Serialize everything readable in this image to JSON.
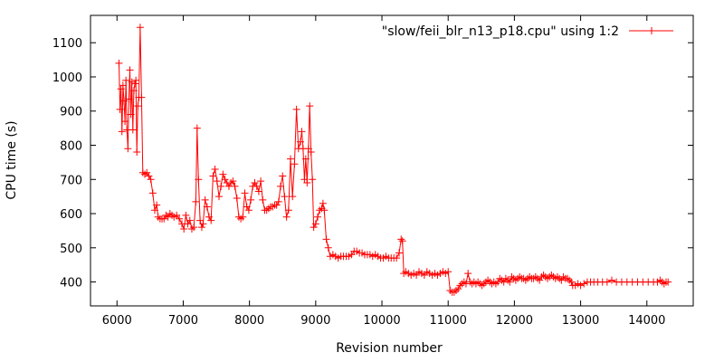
{
  "chart_data": {
    "type": "line",
    "title": "",
    "xlabel": "Revision number",
    "ylabel": "CPU time (s)",
    "xlim": [
      5600,
      14700
    ],
    "ylim": [
      330,
      1180
    ],
    "x_ticks": [
      6000,
      7000,
      8000,
      9000,
      10000,
      11000,
      12000,
      13000,
      14000
    ],
    "y_ticks": [
      400,
      500,
      600,
      700,
      800,
      900,
      1000,
      1100
    ],
    "grid": false,
    "legend_position": "top-right",
    "series_color": "#ff0000",
    "series": [
      {
        "name": "\"slow/feii_blr_n13_p18.cpu\" using 1:2",
        "marker": "plus",
        "points": [
          [
            6030,
            1040
          ],
          [
            6045,
            905
          ],
          [
            6060,
            965
          ],
          [
            6075,
            840
          ],
          [
            6090,
            975
          ],
          [
            6105,
            930
          ],
          [
            6120,
            870
          ],
          [
            6135,
            990
          ],
          [
            6150,
            845
          ],
          [
            6165,
            790
          ],
          [
            6180,
            935
          ],
          [
            6195,
            1020
          ],
          [
            6210,
            890
          ],
          [
            6225,
            985
          ],
          [
            6240,
            845
          ],
          [
            6255,
            960
          ],
          [
            6270,
            980
          ],
          [
            6285,
            990
          ],
          [
            6300,
            780
          ],
          [
            6315,
            915
          ],
          [
            6330,
            940
          ],
          [
            6350,
            1145
          ],
          [
            6370,
            940
          ],
          [
            6390,
            720
          ],
          [
            6420,
            715
          ],
          [
            6450,
            720
          ],
          [
            6480,
            710
          ],
          [
            6510,
            700
          ],
          [
            6540,
            660
          ],
          [
            6570,
            610
          ],
          [
            6600,
            625
          ],
          [
            6620,
            590
          ],
          [
            6650,
            585
          ],
          [
            6680,
            585
          ],
          [
            6710,
            585
          ],
          [
            6740,
            595
          ],
          [
            6770,
            590
          ],
          [
            6800,
            600
          ],
          [
            6830,
            595
          ],
          [
            6860,
            590
          ],
          [
            6900,
            595
          ],
          [
            6940,
            585
          ],
          [
            6980,
            570
          ],
          [
            7010,
            555
          ],
          [
            7040,
            595
          ],
          [
            7070,
            570
          ],
          [
            7100,
            580
          ],
          [
            7130,
            555
          ],
          [
            7160,
            560
          ],
          [
            7190,
            635
          ],
          [
            7210,
            850
          ],
          [
            7230,
            700
          ],
          [
            7255,
            580
          ],
          [
            7280,
            560
          ],
          [
            7300,
            570
          ],
          [
            7330,
            640
          ],
          [
            7360,
            620
          ],
          [
            7390,
            590
          ],
          [
            7420,
            580
          ],
          [
            7450,
            710
          ],
          [
            7480,
            730
          ],
          [
            7510,
            695
          ],
          [
            7540,
            650
          ],
          [
            7570,
            680
          ],
          [
            7600,
            715
          ],
          [
            7630,
            700
          ],
          [
            7660,
            690
          ],
          [
            7690,
            680
          ],
          [
            7720,
            690
          ],
          [
            7750,
            695
          ],
          [
            7780,
            680
          ],
          [
            7810,
            645
          ],
          [
            7840,
            590
          ],
          [
            7870,
            585
          ],
          [
            7900,
            590
          ],
          [
            7930,
            660
          ],
          [
            7960,
            620
          ],
          [
            7990,
            610
          ],
          [
            8020,
            640
          ],
          [
            8050,
            680
          ],
          [
            8080,
            690
          ],
          [
            8110,
            680
          ],
          [
            8140,
            665
          ],
          [
            8170,
            695
          ],
          [
            8200,
            640
          ],
          [
            8230,
            610
          ],
          [
            8260,
            610
          ],
          [
            8290,
            615
          ],
          [
            8320,
            620
          ],
          [
            8350,
            620
          ],
          [
            8380,
            625
          ],
          [
            8410,
            625
          ],
          [
            8440,
            635
          ],
          [
            8470,
            680
          ],
          [
            8500,
            710
          ],
          [
            8530,
            650
          ],
          [
            8560,
            590
          ],
          [
            8590,
            610
          ],
          [
            8620,
            760
          ],
          [
            8650,
            650
          ],
          [
            8680,
            745
          ],
          [
            8710,
            905
          ],
          [
            8740,
            790
          ],
          [
            8770,
            810
          ],
          [
            8790,
            840
          ],
          [
            8810,
            790
          ],
          [
            8830,
            700
          ],
          [
            8850,
            760
          ],
          [
            8870,
            690
          ],
          [
            8890,
            790
          ],
          [
            8910,
            915
          ],
          [
            8930,
            780
          ],
          [
            8950,
            700
          ],
          [
            8970,
            560
          ],
          [
            9000,
            570
          ],
          [
            9030,
            590
          ],
          [
            9060,
            610
          ],
          [
            9090,
            615
          ],
          [
            9110,
            630
          ],
          [
            9130,
            610
          ],
          [
            9160,
            525
          ],
          [
            9190,
            500
          ],
          [
            9220,
            475
          ],
          [
            9260,
            480
          ],
          [
            9300,
            475
          ],
          [
            9340,
            470
          ],
          [
            9380,
            475
          ],
          [
            9420,
            475
          ],
          [
            9460,
            475
          ],
          [
            9500,
            475
          ],
          [
            9540,
            480
          ],
          [
            9580,
            490
          ],
          [
            9620,
            490
          ],
          [
            9660,
            485
          ],
          [
            9700,
            485
          ],
          [
            9740,
            480
          ],
          [
            9780,
            480
          ],
          [
            9820,
            480
          ],
          [
            9860,
            475
          ],
          [
            9900,
            480
          ],
          [
            9940,
            475
          ],
          [
            9980,
            470
          ],
          [
            10020,
            470
          ],
          [
            10060,
            475
          ],
          [
            10100,
            470
          ],
          [
            10140,
            470
          ],
          [
            10180,
            470
          ],
          [
            10220,
            470
          ],
          [
            10260,
            485
          ],
          [
            10290,
            525
          ],
          [
            10310,
            520
          ],
          [
            10330,
            425
          ],
          [
            10360,
            430
          ],
          [
            10400,
            425
          ],
          [
            10440,
            420
          ],
          [
            10480,
            425
          ],
          [
            10520,
            420
          ],
          [
            10560,
            430
          ],
          [
            10600,
            425
          ],
          [
            10640,
            420
          ],
          [
            10680,
            430
          ],
          [
            10720,
            425
          ],
          [
            10760,
            420
          ],
          [
            10800,
            425
          ],
          [
            10840,
            420
          ],
          [
            10880,
            425
          ],
          [
            10920,
            430
          ],
          [
            10960,
            425
          ],
          [
            11000,
            430
          ],
          [
            11030,
            375
          ],
          [
            11060,
            370
          ],
          [
            11090,
            370
          ],
          [
            11120,
            375
          ],
          [
            11150,
            380
          ],
          [
            11180,
            390
          ],
          [
            11210,
            395
          ],
          [
            11240,
            400
          ],
          [
            11270,
            395
          ],
          [
            11300,
            425
          ],
          [
            11330,
            400
          ],
          [
            11360,
            395
          ],
          [
            11390,
            400
          ],
          [
            11420,
            395
          ],
          [
            11450,
            400
          ],
          [
            11480,
            395
          ],
          [
            11510,
            390
          ],
          [
            11540,
            395
          ],
          [
            11570,
            400
          ],
          [
            11600,
            405
          ],
          [
            11630,
            400
          ],
          [
            11660,
            395
          ],
          [
            11690,
            400
          ],
          [
            11720,
            395
          ],
          [
            11750,
            400
          ],
          [
            11780,
            410
          ],
          [
            11810,
            405
          ],
          [
            11840,
            400
          ],
          [
            11870,
            410
          ],
          [
            11900,
            405
          ],
          [
            11930,
            400
          ],
          [
            11960,
            415
          ],
          [
            11990,
            410
          ],
          [
            12020,
            405
          ],
          [
            12050,
            410
          ],
          [
            12080,
            415
          ],
          [
            12110,
            410
          ],
          [
            12140,
            410
          ],
          [
            12170,
            405
          ],
          [
            12200,
            410
          ],
          [
            12230,
            415
          ],
          [
            12260,
            410
          ],
          [
            12290,
            410
          ],
          [
            12320,
            415
          ],
          [
            12350,
            410
          ],
          [
            12380,
            405
          ],
          [
            12410,
            415
          ],
          [
            12440,
            420
          ],
          [
            12470,
            415
          ],
          [
            12500,
            410
          ],
          [
            12530,
            415
          ],
          [
            12560,
            420
          ],
          [
            12590,
            415
          ],
          [
            12620,
            410
          ],
          [
            12650,
            415
          ],
          [
            12680,
            410
          ],
          [
            12710,
            405
          ],
          [
            12740,
            415
          ],
          [
            12770,
            410
          ],
          [
            12800,
            410
          ],
          [
            12830,
            405
          ],
          [
            12860,
            400
          ],
          [
            12880,
            390
          ],
          [
            12920,
            390
          ],
          [
            12960,
            395
          ],
          [
            13000,
            390
          ],
          [
            13050,
            395
          ],
          [
            13100,
            400
          ],
          [
            13150,
            400
          ],
          [
            13200,
            400
          ],
          [
            13260,
            400
          ],
          [
            13330,
            400
          ],
          [
            13400,
            400
          ],
          [
            13470,
            405
          ],
          [
            13540,
            400
          ],
          [
            13620,
            400
          ],
          [
            13700,
            400
          ],
          [
            13780,
            400
          ],
          [
            13860,
            400
          ],
          [
            13940,
            400
          ],
          [
            14020,
            400
          ],
          [
            14100,
            400
          ],
          [
            14160,
            400
          ],
          [
            14200,
            405
          ],
          [
            14230,
            400
          ],
          [
            14260,
            395
          ],
          [
            14290,
            400
          ],
          [
            14320,
            400
          ]
        ]
      }
    ]
  }
}
